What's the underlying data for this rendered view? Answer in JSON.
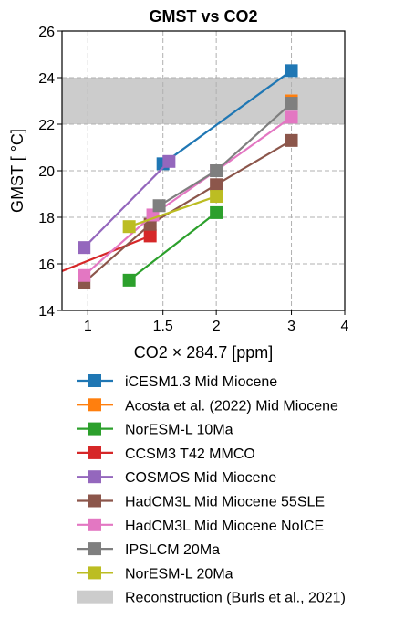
{
  "chart_data": {
    "type": "line",
    "title": "GMST vs CO2",
    "xlabel": "CO2 × 284.7 [ppm]",
    "ylabel": "GMST [$^\\circ$C]",
    "ylabel_text": "GMST [ °C]",
    "x_scale": "log",
    "xlim": [
      0.87,
      4
    ],
    "ylim": [
      14,
      26
    ],
    "grid": true,
    "legend_placement": "below",
    "x_ticks": [
      {
        "value": 1,
        "label": "1"
      },
      {
        "value": 1.5,
        "label": "1.5"
      },
      {
        "value": 2,
        "label": "2"
      },
      {
        "value": 3,
        "label": "3"
      },
      {
        "value": 4,
        "label": "4"
      }
    ],
    "y_ticks": [
      {
        "value": 14,
        "label": "14"
      },
      {
        "value": 16,
        "label": "16"
      },
      {
        "value": 18,
        "label": "18"
      },
      {
        "value": 20,
        "label": "20"
      },
      {
        "value": 22,
        "label": "22"
      },
      {
        "value": 24,
        "label": "24"
      },
      {
        "value": 26,
        "label": "26"
      }
    ],
    "reconstruction": {
      "name": "Reconstruction (Burls et al., 2021)",
      "ymin": 22,
      "ymax": 24,
      "color": "#cccccc"
    },
    "series": [
      {
        "name": "iCESM1.3 Mid Miocene",
        "color": "#1f77b4",
        "x": [
          1.5,
          3
        ],
        "y": [
          20.3,
          24.3
        ]
      },
      {
        "name": "Acosta et al. (2022) Mid Miocene",
        "color": "#ff7f0e",
        "x": [
          3
        ],
        "y": [
          23.0
        ]
      },
      {
        "name": "NorESM-L 10Ma",
        "color": "#2ca02c",
        "x": [
          1.25,
          2
        ],
        "y": [
          15.3,
          18.2
        ]
      },
      {
        "name": "CCSM3 T42 MMCO",
        "color": "#d62728",
        "x": [
          0.7,
          1.4
        ],
        "y": [
          15.0,
          17.2
        ],
        "extends_left": true
      },
      {
        "name": "COSMOS Mid Miocene",
        "color": "#9467bd",
        "x": [
          0.98,
          1.55
        ],
        "y": [
          16.7,
          20.4
        ]
      },
      {
        "name": "HadCM3L Mid Miocene 55SLE",
        "color": "#8c564b",
        "x": [
          0.98,
          1.4,
          2,
          3
        ],
        "y": [
          15.2,
          17.7,
          19.4,
          21.3
        ]
      },
      {
        "name": "HadCM3L Mid Miocene NoICE",
        "color": "#e377c2",
        "x": [
          0.98,
          1.42,
          2,
          3
        ],
        "y": [
          15.5,
          18.1,
          20.0,
          22.3
        ]
      },
      {
        "name": "IPSLCM 20Ma",
        "color": "#7f7f7f",
        "x": [
          1.47,
          2,
          3
        ],
        "y": [
          18.5,
          20.0,
          22.9
        ]
      },
      {
        "name": "NorESM-L 20Ma",
        "color": "#bcbd22",
        "x": [
          1.25,
          2
        ],
        "y": [
          17.6,
          18.9
        ]
      }
    ]
  }
}
